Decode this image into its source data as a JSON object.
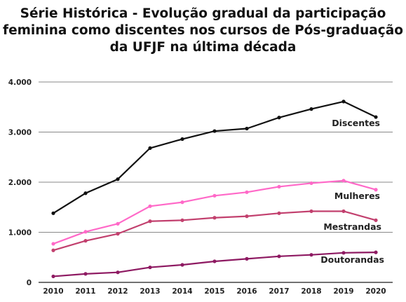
{
  "title_lines": [
    "Série Histórica - Evolução gradual da participação",
    "feminina como discentes nos cursos de Pós-graduação",
    "da UFJF na última década"
  ],
  "chart_data": {
    "type": "line",
    "title": "Série Histórica - Evolução gradual da participação feminina como discentes nos cursos de Pós-graduação da UFJF na última década",
    "x": [
      "2010",
      "2011",
      "2012",
      "2013",
      "2014",
      "2015",
      "2016",
      "2017",
      "2018",
      "2019",
      "2020"
    ],
    "ylim": [
      0,
      4000
    ],
    "yticks": [
      0,
      1000,
      2000,
      3000,
      4000
    ],
    "ytick_labels": [
      "0",
      "1.000",
      "2.000",
      "3.000",
      "4.000"
    ],
    "grid": true,
    "legend": "inline labels at right end of each line",
    "series": [
      {
        "name": "Discentes",
        "color": "#111111",
        "values": [
          1380,
          1780,
          2060,
          2680,
          2860,
          3020,
          3070,
          3290,
          3460,
          3610,
          3300
        ]
      },
      {
        "name": "Mulheres",
        "color": "#ff69c8",
        "values": [
          770,
          1010,
          1170,
          1520,
          1600,
          1730,
          1800,
          1910,
          1980,
          2030,
          1850
        ]
      },
      {
        "name": "Mestrandas",
        "color": "#c2406e",
        "values": [
          640,
          830,
          970,
          1220,
          1240,
          1290,
          1320,
          1380,
          1420,
          1420,
          1240
        ]
      },
      {
        "name": "Doutorandas",
        "color": "#8e1a62",
        "values": [
          120,
          170,
          200,
          300,
          350,
          420,
          470,
          520,
          550,
          590,
          600
        ]
      }
    ]
  }
}
